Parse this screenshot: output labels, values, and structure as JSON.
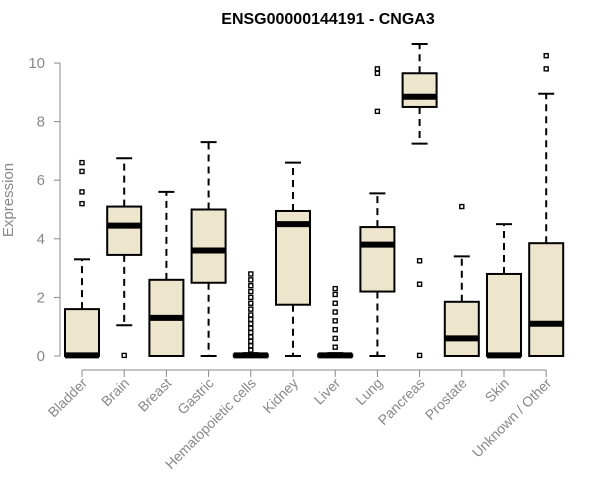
{
  "chart_data": {
    "type": "boxplot",
    "title": "ENSG00000144191 - CNGA3",
    "ylabel": "Expression",
    "xlabel": "",
    "ylim": [
      0,
      10
    ],
    "yticks": [
      "0",
      "2",
      "4",
      "6",
      "8",
      "10"
    ],
    "box_fill": "#ede6cc",
    "box_stroke": "#000000",
    "axis_color": "#888888",
    "categories": [
      "Bladder",
      "Brain",
      "Breast",
      "Gastric",
      "Hematopoietic cells",
      "Kidney",
      "Liver",
      "Lung",
      "Pancreas",
      "Prostate",
      "Skin",
      "Unknown / Other"
    ],
    "boxes": [
      {
        "label": "Bladder",
        "whisker_low": 0,
        "q1": 0,
        "median": 0.02,
        "q3": 1.6,
        "whisker_high": 3.3,
        "outliers": [
          5.2,
          5.6,
          6.3,
          6.6
        ]
      },
      {
        "label": "Brain",
        "whisker_low": 1.05,
        "q1": 3.45,
        "median": 4.45,
        "q3": 5.1,
        "whisker_high": 6.75,
        "outliers": [
          0.02
        ]
      },
      {
        "label": "Breast",
        "whisker_low": 0,
        "q1": 0,
        "median": 1.3,
        "q3": 2.6,
        "whisker_high": 5.6,
        "outliers": []
      },
      {
        "label": "Gastric",
        "whisker_low": 0,
        "q1": 2.5,
        "median": 3.6,
        "q3": 5.0,
        "whisker_high": 7.3,
        "outliers": []
      },
      {
        "label": "Hematopoietic cells",
        "whisker_low": 0,
        "q1": 0,
        "median": 0.02,
        "q3": 0.05,
        "whisker_high": 0.1,
        "outliers": [
          0.2,
          0.35,
          0.5,
          0.65,
          0.8,
          0.95,
          1.1,
          1.25,
          1.4,
          1.6,
          1.8,
          2.0,
          2.2,
          2.4,
          2.6,
          2.8
        ]
      },
      {
        "label": "Kidney",
        "whisker_low": 0,
        "q1": 1.75,
        "median": 4.5,
        "q3": 4.95,
        "whisker_high": 6.6,
        "outliers": []
      },
      {
        "label": "Liver",
        "whisker_low": 0,
        "q1": 0,
        "median": 0.02,
        "q3": 0.05,
        "whisker_high": 0.1,
        "outliers": [
          0.3,
          0.6,
          0.9,
          1.2,
          1.5,
          1.8,
          2.1,
          2.3
        ]
      },
      {
        "label": "Lung",
        "whisker_low": 0,
        "q1": 2.2,
        "median": 3.8,
        "q3": 4.4,
        "whisker_high": 5.55,
        "outliers": [
          8.35,
          9.65,
          9.8
        ]
      },
      {
        "label": "Pancreas",
        "whisker_low": 7.25,
        "q1": 8.5,
        "median": 8.85,
        "q3": 9.65,
        "whisker_high": 10.65,
        "outliers": [
          0.02,
          2.45,
          3.25
        ]
      },
      {
        "label": "Prostate",
        "whisker_low": 0,
        "q1": 0,
        "median": 0.6,
        "q3": 1.85,
        "whisker_high": 3.4,
        "outliers": [
          5.1
        ]
      },
      {
        "label": "Skin",
        "whisker_low": 0,
        "q1": 0,
        "median": 0.02,
        "q3": 2.8,
        "whisker_high": 4.5,
        "outliers": []
      },
      {
        "label": "Unknown / Other",
        "whisker_low": 0,
        "q1": 0,
        "median": 1.1,
        "q3": 3.85,
        "whisker_high": 8.95,
        "outliers": [
          9.8,
          10.25
        ]
      }
    ]
  }
}
